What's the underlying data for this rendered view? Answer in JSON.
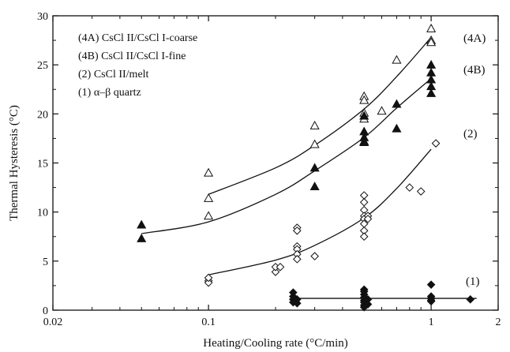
{
  "chart_data": {
    "type": "scatter",
    "xscale": "log",
    "xlim": [
      0.02,
      2
    ],
    "ylim": [
      0,
      30
    ],
    "xlabel": "Heating/Cooling rate (°C/min)",
    "ylabel": "Thermal Hysteresis (°C)",
    "x_ticks": [
      {
        "value": 0.02,
        "label": "0.02"
      },
      {
        "value": 0.1,
        "label": "0.1"
      },
      {
        "value": 1,
        "label": "1"
      },
      {
        "value": 2,
        "label": "2"
      }
    ],
    "y_ticks": [
      {
        "value": 0,
        "label": "0"
      },
      {
        "value": 5,
        "label": "5"
      },
      {
        "value": 10,
        "label": "10"
      },
      {
        "value": 15,
        "label": "15"
      },
      {
        "value": 20,
        "label": "20"
      },
      {
        "value": 25,
        "label": "25"
      },
      {
        "value": 30,
        "label": "30"
      }
    ],
    "legend": [
      {
        "text": "(4A) CsCl II/CsCl I-coarse"
      },
      {
        "text": "(4B) CsCl II/CsCl I-fine"
      },
      {
        "text": "(2) CsCl II/melt"
      },
      {
        "text": "(1) α–β quartz"
      }
    ],
    "legend_position": "top-left",
    "series": [
      {
        "name": "(4A)",
        "marker": "triangle-open",
        "points": [
          [
            0.1,
            14.0
          ],
          [
            0.1,
            11.4
          ],
          [
            0.1,
            9.6
          ],
          [
            0.3,
            18.8
          ],
          [
            0.3,
            16.9
          ],
          [
            0.5,
            21.8
          ],
          [
            0.5,
            21.4
          ],
          [
            0.5,
            20.1
          ],
          [
            0.5,
            19.5
          ],
          [
            0.5,
            17.2
          ],
          [
            0.6,
            20.3
          ],
          [
            0.7,
            25.5
          ],
          [
            1.0,
            28.7
          ],
          [
            1.0,
            27.5
          ],
          [
            1.0,
            27.3
          ]
        ],
        "fit": [
          [
            0.1,
            11.8
          ],
          [
            0.2,
            14.5
          ],
          [
            0.3,
            16.8
          ],
          [
            0.5,
            20.5
          ],
          [
            0.7,
            23.8
          ],
          [
            1.0,
            27.8
          ]
        ]
      },
      {
        "name": "(4B)",
        "marker": "triangle-filled",
        "points": [
          [
            0.05,
            8.7
          ],
          [
            0.05,
            7.3
          ],
          [
            0.3,
            14.5
          ],
          [
            0.3,
            12.6
          ],
          [
            0.5,
            19.8
          ],
          [
            0.5,
            18.2
          ],
          [
            0.5,
            17.6
          ],
          [
            0.5,
            17.1
          ],
          [
            0.7,
            21.0
          ],
          [
            0.7,
            18.5
          ],
          [
            1.0,
            25.0
          ],
          [
            1.0,
            24.2
          ],
          [
            1.0,
            23.5
          ],
          [
            1.0,
            22.8
          ],
          [
            1.0,
            22.1
          ]
        ],
        "fit": [
          [
            0.05,
            7.8
          ],
          [
            0.1,
            9.0
          ],
          [
            0.2,
            11.8
          ],
          [
            0.3,
            14.2
          ],
          [
            0.5,
            17.6
          ],
          [
            0.7,
            20.6
          ],
          [
            1.0,
            23.6
          ]
        ]
      },
      {
        "name": "(2)",
        "marker": "diamond-open",
        "points": [
          [
            0.1,
            3.0
          ],
          [
            0.1,
            2.8
          ],
          [
            0.1,
            3.3
          ],
          [
            0.2,
            3.9
          ],
          [
            0.2,
            4.4
          ],
          [
            0.21,
            4.4
          ],
          [
            0.25,
            8.4
          ],
          [
            0.25,
            8.1
          ],
          [
            0.25,
            6.5
          ],
          [
            0.25,
            6.2
          ],
          [
            0.25,
            5.7
          ],
          [
            0.25,
            5.2
          ],
          [
            0.3,
            5.5
          ],
          [
            0.5,
            11.7
          ],
          [
            0.5,
            11.0
          ],
          [
            0.5,
            10.2
          ],
          [
            0.5,
            9.6
          ],
          [
            0.5,
            9.3
          ],
          [
            0.5,
            8.8
          ],
          [
            0.5,
            8.1
          ],
          [
            0.5,
            7.5
          ],
          [
            0.52,
            9.6
          ],
          [
            0.52,
            9.3
          ],
          [
            0.8,
            12.5
          ],
          [
            0.9,
            12.1
          ],
          [
            1.05,
            17.0
          ]
        ],
        "fit": [
          [
            0.1,
            3.6
          ],
          [
            0.2,
            5.1
          ],
          [
            0.3,
            6.6
          ],
          [
            0.5,
            9.4
          ],
          [
            0.7,
            12.4
          ],
          [
            1.0,
            16.4
          ]
        ]
      },
      {
        "name": "(1)",
        "marker": "diamond-filled",
        "points": [
          [
            0.24,
            1.8
          ],
          [
            0.24,
            1.4
          ],
          [
            0.24,
            1.1
          ],
          [
            0.24,
            0.8
          ],
          [
            0.25,
            1.1
          ],
          [
            0.25,
            0.7
          ],
          [
            0.5,
            2.1
          ],
          [
            0.5,
            1.9
          ],
          [
            0.5,
            1.6
          ],
          [
            0.5,
            1.3
          ],
          [
            0.5,
            1.0
          ],
          [
            0.5,
            0.8
          ],
          [
            0.5,
            0.5
          ],
          [
            0.5,
            0.3
          ],
          [
            0.52,
            1.1
          ],
          [
            0.52,
            0.6
          ],
          [
            1.0,
            2.6
          ],
          [
            1.0,
            1.4
          ],
          [
            1.0,
            1.2
          ],
          [
            1.0,
            1.0
          ],
          [
            1.0,
            0.9
          ],
          [
            1.5,
            1.1
          ]
        ],
        "fit": [
          [
            0.24,
            1.2
          ],
          [
            0.5,
            1.2
          ],
          [
            1.0,
            1.2
          ],
          [
            1.6,
            1.2
          ]
        ]
      }
    ],
    "annotations": [
      {
        "text": "(4A)",
        "anchor_x": 1.3,
        "anchor_y": 28.5
      },
      {
        "text": "(4B)",
        "anchor_x": 1.3,
        "anchor_y": 24.8
      },
      {
        "text": "(2)",
        "anchor_x": 1.3,
        "anchor_y": 17.2
      },
      {
        "text": "(1)",
        "anchor_x": 1.3,
        "anchor_y": 2.7
      }
    ]
  }
}
